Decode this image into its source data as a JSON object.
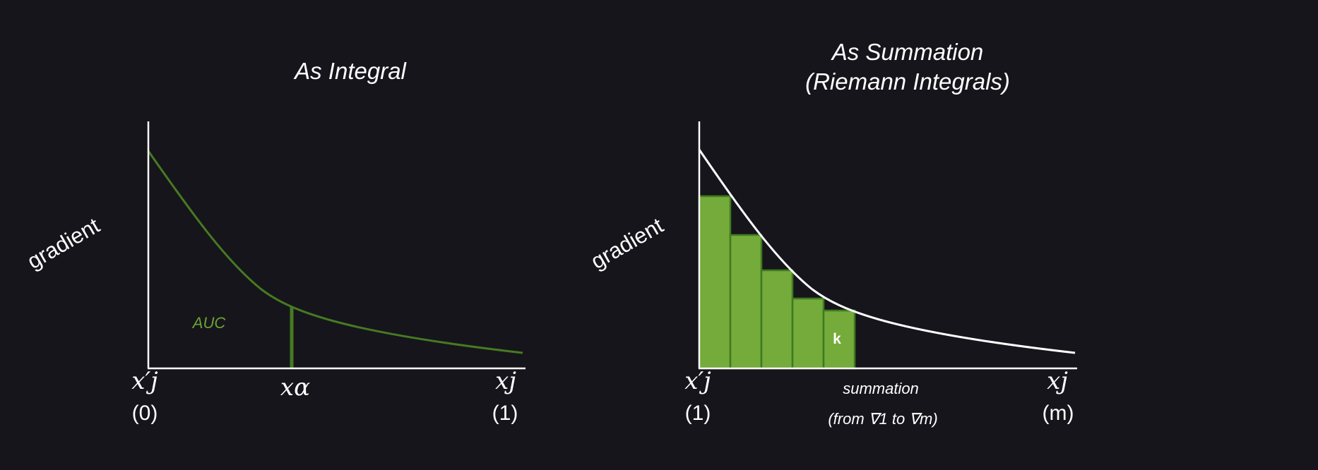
{
  "colors": {
    "background": "#16151b",
    "axis": "#ffffff",
    "curve_left": "#467a23",
    "bar_fill": "#74ab3a",
    "bar_stroke": "#3f7a1e",
    "auc_text": "#6aa335"
  },
  "left": {
    "title": "As Integral",
    "ylabel": "gradient",
    "x_start_label": "x′j",
    "x_start_sub": "(0)",
    "x_mid_label": "xα",
    "x_end_label": "xj",
    "x_end_sub": "(1)",
    "area_label": "AUC"
  },
  "right": {
    "title_line1": "As Summation",
    "title_line2": "(Riemann Integrals)",
    "ylabel": "gradient",
    "x_start_label": "x′j",
    "x_start_sub": "(1)",
    "x_end_label": "xj",
    "x_end_sub": "(m)",
    "note_line1": "summation",
    "note_line2": "(from ∇1 to ∇m)",
    "bar_label": "k",
    "bar_count": 5
  }
}
